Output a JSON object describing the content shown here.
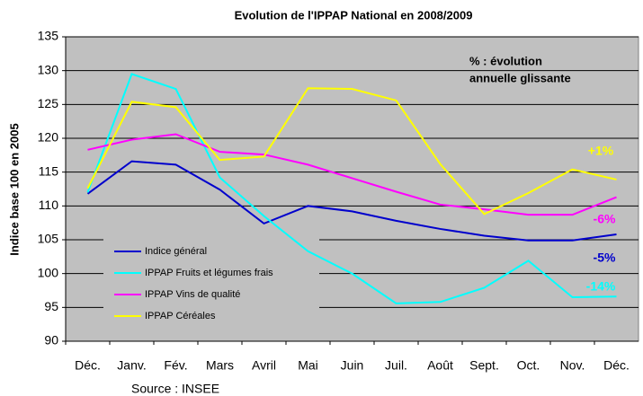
{
  "chart_data": {
    "type": "line",
    "title": "Evolution de l'IPPAP National en 2008/2009",
    "y_label": "Indice base 100 en 2005",
    "source": "Source : INSEE",
    "note": [
      "% : évolution",
      "annuelle glissante"
    ],
    "categories": [
      "Déc.",
      "Janv.",
      "Fév.",
      "Mars",
      "Avril",
      "Mai",
      "Juin",
      "Juil.",
      "Août",
      "Sept.",
      "Oct.",
      "Nov.",
      "Déc."
    ],
    "series": [
      {
        "name": "Indice général",
        "color": "#0000cc",
        "values": [
          111.8,
          116.6,
          116.1,
          112.4,
          107.4,
          110.0,
          109.2,
          107.8,
          106.6,
          105.6,
          104.9,
          104.9,
          105.8
        ]
      },
      {
        "name": "IPPAP Fruits et légumes frais",
        "color": "#00ffff",
        "values": [
          112.0,
          129.5,
          127.3,
          114.2,
          108.5,
          103.3,
          100.0,
          95.6,
          95.8,
          97.9,
          101.9,
          96.5,
          96.6
        ]
      },
      {
        "name": "IPPAP Vins de qualité",
        "color": "#ff00ff",
        "values": [
          118.3,
          119.8,
          120.6,
          118.0,
          117.6,
          116.1,
          114.1,
          112.1,
          110.2,
          109.5,
          108.7,
          108.7,
          111.3
        ]
      },
      {
        "name": "IPPAP Céréales",
        "color": "#ffff00",
        "values": [
          112.6,
          125.4,
          124.6,
          116.8,
          117.3,
          127.4,
          127.3,
          125.6,
          116.2,
          108.8,
          111.9,
          115.4,
          113.9
        ]
      }
    ],
    "annotations": [
      {
        "text": "+1%",
        "color": "#ffff00"
      },
      {
        "text": "-6%",
        "color": "#ff00ff"
      },
      {
        "text": "-5%",
        "color": "#0000cc"
      },
      {
        "text": "-14%",
        "color": "#00ffff"
      }
    ],
    "ylim": [
      90,
      135
    ],
    "yticks": [
      90,
      95,
      100,
      105,
      110,
      115,
      120,
      125,
      130,
      135
    ],
    "grid": true
  }
}
